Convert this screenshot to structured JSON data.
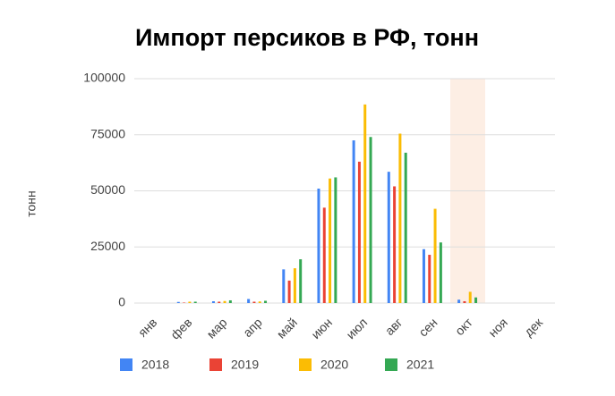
{
  "chart_data": {
    "type": "bar",
    "title": "Импорт персиков в РФ, тонн",
    "y_label": "тонн",
    "categories": [
      "янв",
      "фев",
      "мар",
      "апр",
      "май",
      "июн",
      "июл",
      "авг",
      "сен",
      "окт",
      "ноя",
      "дек"
    ],
    "series": [
      {
        "name": "2018",
        "color": "#4285f4",
        "values": [
          0,
          500,
          800,
          1800,
          15000,
          51000,
          72500,
          58500,
          24000,
          1500,
          0,
          0
        ]
      },
      {
        "name": "2019",
        "color": "#ea4335",
        "values": [
          0,
          200,
          600,
          600,
          10000,
          42500,
          63000,
          52000,
          21500,
          800,
          0,
          0
        ]
      },
      {
        "name": "2020",
        "color": "#fbbc04",
        "values": [
          0,
          600,
          900,
          700,
          15500,
          55500,
          88500,
          75500,
          42000,
          5000,
          0,
          0
        ]
      },
      {
        "name": "2021",
        "color": "#34a853",
        "values": [
          0,
          600,
          1200,
          1000,
          19500,
          56000,
          74000,
          67000,
          27000,
          2500,
          0,
          0
        ]
      }
    ],
    "ylim": [
      0,
      100000
    ],
    "yticks": [
      0,
      25000,
      50000,
      75000,
      100000
    ],
    "grid": true,
    "legend": "bottom"
  }
}
